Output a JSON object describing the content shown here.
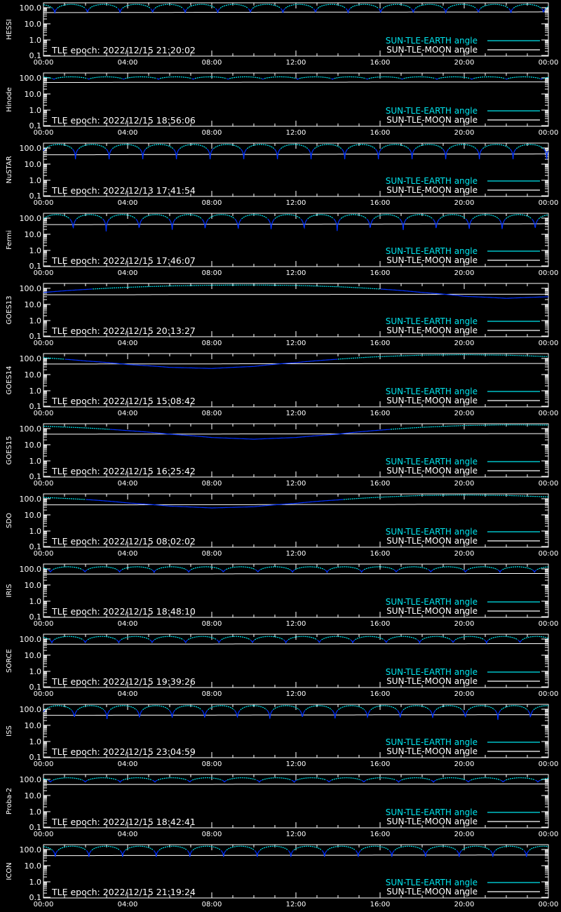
{
  "page": {
    "background": "#000000",
    "axis_color": "#ffffff",
    "earth_color_up": "#00e5ee",
    "earth_color_down": "#0030ff",
    "moon_color": "#ffffff"
  },
  "common": {
    "x_ticks": [
      "00:00",
      "04:00",
      "08:00",
      "12:00",
      "16:00",
      "20:00",
      "00:00"
    ],
    "y_ticks": [
      "0.1",
      "1.0",
      "10.0",
      "100.0"
    ],
    "legend": [
      "SUN-TLE-EARTH angle",
      "SUN-TLE-MOON angle"
    ],
    "epoch_prefix": "TLE epoch: "
  },
  "chart_data": [
    {
      "type": "line",
      "ylabel": "HESSI",
      "epoch": "2022/12/15 21:20:02",
      "x_range_hours": [
        0,
        24
      ],
      "y_scale": "log",
      "ylim": [
        0.1,
        200
      ],
      "legend_position": "bottom-right",
      "series": [
        {
          "name": "SUN-TLE-EARTH angle",
          "kind": "orbital",
          "orbits": 15.5,
          "phase": 0.15,
          "y_min": 45,
          "y_max": 160
        },
        {
          "name": "SUN-TLE-MOON angle",
          "kind": "smooth",
          "values": [
            50,
            50,
            51,
            51,
            52,
            52,
            53,
            53,
            53,
            54,
            54,
            54,
            55
          ]
        }
      ]
    },
    {
      "type": "line",
      "ylabel": "Hinode",
      "epoch": "2022/12/15 18:56:06",
      "x_range_hours": [
        0,
        24
      ],
      "y_scale": "log",
      "ylim": [
        0.1,
        200
      ],
      "legend_position": "bottom-right",
      "series": [
        {
          "name": "SUN-TLE-EARTH angle",
          "kind": "orbital",
          "orbits": 14.5,
          "phase": 0.2,
          "y_min": 80,
          "y_max": 115
        },
        {
          "name": "SUN-TLE-MOON angle",
          "kind": "smooth",
          "values": [
            52,
            52,
            53,
            53,
            53,
            54,
            54,
            54,
            55,
            55,
            55,
            56,
            56
          ]
        }
      ]
    },
    {
      "type": "line",
      "ylabel": "NuSTAR",
      "epoch": "2022/12/13 17:41:54",
      "x_range_hours": [
        0,
        24
      ],
      "y_scale": "log",
      "ylim": [
        0.1,
        200
      ],
      "legend_position": "bottom-right",
      "series": [
        {
          "name": "SUN-TLE-EARTH angle",
          "kind": "orbital",
          "orbits": 15.0,
          "phase": 0.55,
          "y_min": 20,
          "y_max": 165
        },
        {
          "name": "SUN-TLE-MOON angle",
          "kind": "smooth",
          "values": [
            38,
            38,
            39,
            39,
            40,
            40,
            40,
            41,
            41,
            42,
            42,
            42,
            43
          ]
        }
      ]
    },
    {
      "type": "line",
      "ylabel": "Fermi",
      "epoch": "2022/12/15 17:46:07",
      "x_range_hours": [
        0,
        24
      ],
      "y_scale": "log",
      "ylim": [
        0.1,
        200
      ],
      "legend_position": "bottom-right",
      "series": [
        {
          "name": "SUN-TLE-EARTH angle",
          "kind": "orbital",
          "orbits": 15.3,
          "phase": 0.6,
          "y_min": 13,
          "y_max": 165
        },
        {
          "name": "SUN-TLE-MOON angle",
          "kind": "smooth",
          "values": [
            40,
            40,
            41,
            41,
            42,
            42,
            42,
            43,
            43,
            44,
            44,
            44,
            45
          ]
        }
      ]
    },
    {
      "type": "line",
      "ylabel": "GOES13",
      "epoch": "2022/12/15 20:13:27",
      "x_range_hours": [
        0,
        24
      ],
      "y_scale": "log",
      "ylim": [
        0.1,
        200
      ],
      "legend_position": "bottom-right",
      "series": [
        {
          "name": "SUN-TLE-EARTH angle",
          "kind": "smooth",
          "values": [
            55,
            85,
            115,
            140,
            155,
            160,
            150,
            125,
            90,
            55,
            32,
            24,
            30
          ]
        },
        {
          "name": "SUN-TLE-MOON angle",
          "kind": "smooth",
          "values": [
            40,
            40,
            40,
            41,
            41,
            41,
            41,
            42,
            42,
            42,
            43,
            43,
            43
          ]
        }
      ]
    },
    {
      "type": "line",
      "ylabel": "GOES14",
      "epoch": "2022/12/15 15:08:42",
      "x_range_hours": [
        0,
        24
      ],
      "y_scale": "log",
      "ylim": [
        0.1,
        200
      ],
      "legend_position": "bottom-right",
      "series": [
        {
          "name": "SUN-TLE-EARTH angle",
          "kind": "smooth",
          "values": [
            110,
            70,
            42,
            28,
            24,
            32,
            55,
            90,
            130,
            160,
            170,
            160,
            130
          ]
        },
        {
          "name": "SUN-TLE-MOON angle",
          "kind": "smooth",
          "values": [
            45,
            45,
            46,
            46,
            46,
            47,
            47,
            47,
            48,
            48,
            48,
            49,
            49
          ]
        }
      ]
    },
    {
      "type": "line",
      "ylabel": "GOES15",
      "epoch": "2022/12/15 16:25:42",
      "x_range_hours": [
        0,
        24
      ],
      "y_scale": "log",
      "ylim": [
        0.1,
        200
      ],
      "legend_position": "bottom-right",
      "series": [
        {
          "name": "SUN-TLE-EARTH angle",
          "kind": "smooth",
          "values": [
            140,
            110,
            75,
            45,
            28,
            22,
            28,
            45,
            80,
            120,
            155,
            170,
            165
          ]
        },
        {
          "name": "SUN-TLE-MOON angle",
          "kind": "smooth",
          "values": [
            45,
            45,
            46,
            46,
            46,
            47,
            47,
            47,
            48,
            48,
            48,
            49,
            49
          ]
        }
      ]
    },
    {
      "type": "line",
      "ylabel": "SDO",
      "epoch": "2022/12/15 08:02:02",
      "x_range_hours": [
        0,
        24
      ],
      "y_scale": "log",
      "ylim": [
        0.1,
        200
      ],
      "legend_position": "bottom-right",
      "series": [
        {
          "name": "SUN-TLE-EARTH angle",
          "kind": "smooth",
          "values": [
            120,
            90,
            55,
            35,
            27,
            32,
            52,
            85,
            125,
            160,
            170,
            160,
            130
          ]
        },
        {
          "name": "SUN-TLE-MOON angle",
          "kind": "smooth",
          "values": [
            42,
            42,
            42,
            43,
            43,
            43,
            44,
            44,
            44,
            45,
            45,
            45,
            46
          ]
        }
      ]
    },
    {
      "type": "line",
      "ylabel": "IRIS",
      "epoch": "2022/12/15 18:48:10",
      "x_range_hours": [
        0,
        24
      ],
      "y_scale": "log",
      "ylim": [
        0.1,
        200
      ],
      "legend_position": "bottom-right",
      "series": [
        {
          "name": "SUN-TLE-EARTH angle",
          "kind": "orbital",
          "orbits": 14.6,
          "phase": 0.3,
          "y_min": 60,
          "y_max": 135
        },
        {
          "name": "SUN-TLE-MOON angle",
          "kind": "smooth",
          "values": [
            48,
            48,
            49,
            49,
            49,
            50,
            50,
            50,
            51,
            51,
            51,
            52,
            52
          ]
        }
      ]
    },
    {
      "type": "line",
      "ylabel": "SORCE",
      "epoch": "2022/12/15 19:39:26",
      "x_range_hours": [
        0,
        24
      ],
      "y_scale": "log",
      "ylim": [
        0.1,
        200
      ],
      "legend_position": "bottom-right",
      "series": [
        {
          "name": "SUN-TLE-EARTH angle",
          "kind": "orbital",
          "orbits": 15.1,
          "phase": 0.25,
          "y_min": 55,
          "y_max": 145
        },
        {
          "name": "SUN-TLE-MOON angle",
          "kind": "smooth",
          "values": [
            48,
            48,
            49,
            49,
            49,
            50,
            50,
            50,
            51,
            51,
            51,
            52,
            52
          ]
        }
      ]
    },
    {
      "type": "line",
      "ylabel": "ISS",
      "epoch": "2022/12/15 23:04:59",
      "x_range_hours": [
        0,
        24
      ],
      "y_scale": "log",
      "ylim": [
        0.1,
        200
      ],
      "legend_position": "bottom-right",
      "series": [
        {
          "name": "SUN-TLE-EARTH angle",
          "kind": "orbital",
          "orbits": 15.5,
          "phase": 0.55,
          "y_min": 22,
          "y_max": 165
        },
        {
          "name": "SUN-TLE-MOON angle",
          "kind": "smooth",
          "values": [
            42,
            42,
            43,
            43,
            43,
            44,
            44,
            44,
            45,
            45,
            45,
            46,
            46
          ]
        }
      ]
    },
    {
      "type": "line",
      "ylabel": "Proba-2",
      "epoch": "2022/12/15 18:42:41",
      "x_range_hours": [
        0,
        24
      ],
      "y_scale": "log",
      "ylim": [
        0.1,
        200
      ],
      "legend_position": "bottom-right",
      "series": [
        {
          "name": "SUN-TLE-EARTH angle",
          "kind": "orbital",
          "orbits": 14.5,
          "phase": 0.3,
          "y_min": 65,
          "y_max": 125
        },
        {
          "name": "SUN-TLE-MOON angle",
          "kind": "smooth",
          "values": [
            48,
            48,
            49,
            49,
            49,
            50,
            50,
            50,
            51,
            51,
            51,
            52,
            52
          ]
        }
      ]
    },
    {
      "type": "line",
      "ylabel": "ICON",
      "epoch": "2022/12/15 21:19:24",
      "x_range_hours": [
        0,
        24
      ],
      "y_scale": "log",
      "ylim": [
        0.1,
        200
      ],
      "legend_position": "bottom-right",
      "series": [
        {
          "name": "SUN-TLE-EARTH angle",
          "kind": "orbital",
          "orbits": 15.0,
          "phase": 0.15,
          "y_min": 35,
          "y_max": 160
        },
        {
          "name": "SUN-TLE-MOON angle",
          "kind": "smooth",
          "values": [
            42,
            42,
            43,
            43,
            43,
            44,
            44,
            44,
            45,
            45,
            45,
            46,
            46
          ]
        }
      ]
    }
  ]
}
